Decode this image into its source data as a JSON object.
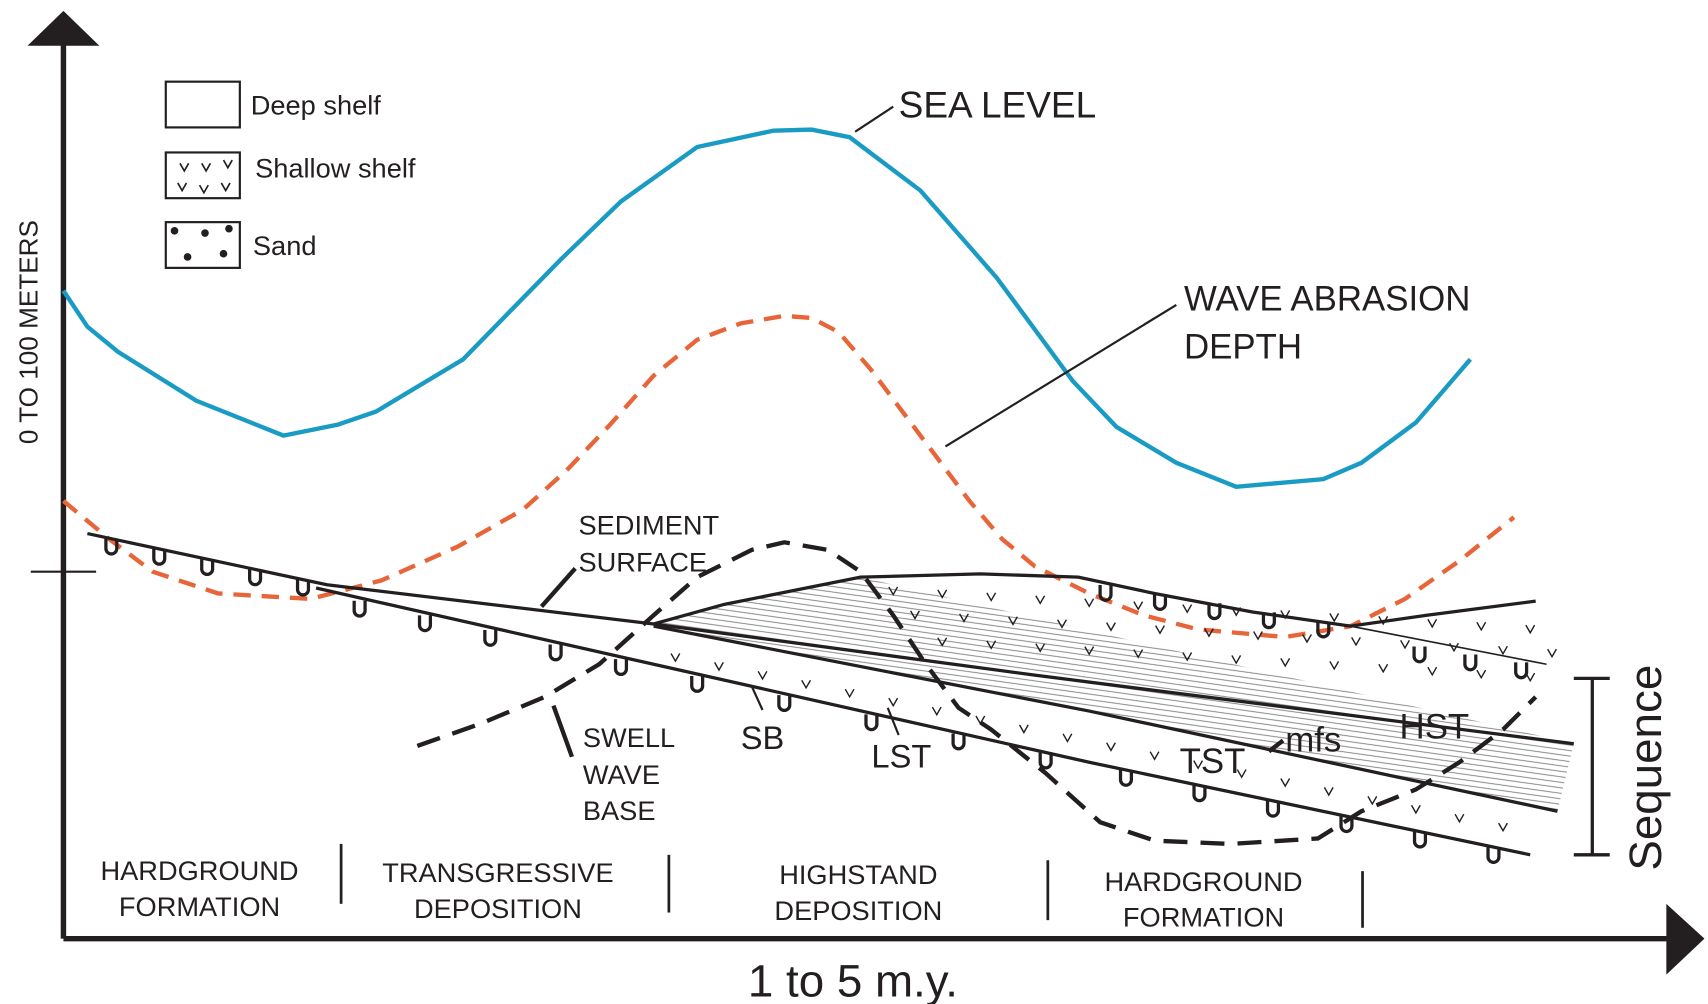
{
  "axes": {
    "y_label": "0 TO 100 METERS",
    "x_label": "1 to 5 m.y."
  },
  "legend": [
    {
      "label": "Deep shelf"
    },
    {
      "label": "Shallow shelf"
    },
    {
      "label": "Sand"
    }
  ],
  "curves": {
    "sea_level": "SEA LEVEL",
    "wave_abrasion": [
      "WAVE ABRASION",
      "DEPTH"
    ]
  },
  "labels": {
    "sediment_surface": [
      "SEDIMENT",
      "SURFACE"
    ],
    "swell_wave_base": [
      "SWELL",
      "WAVE",
      "BASE"
    ],
    "sb": "SB",
    "lst": "LST",
    "tst": "TST",
    "mfs": "mfs",
    "hst": "HST",
    "sequence": "Sequence"
  },
  "phases": [
    [
      "HARDGROUND",
      "FORMATION"
    ],
    [
      "TRANSGRESSIVE",
      "DEPOSITION"
    ],
    [
      "HIGHSTAND",
      "DEPOSITION"
    ],
    [
      "HARDGROUND",
      "FORMATION"
    ]
  ]
}
